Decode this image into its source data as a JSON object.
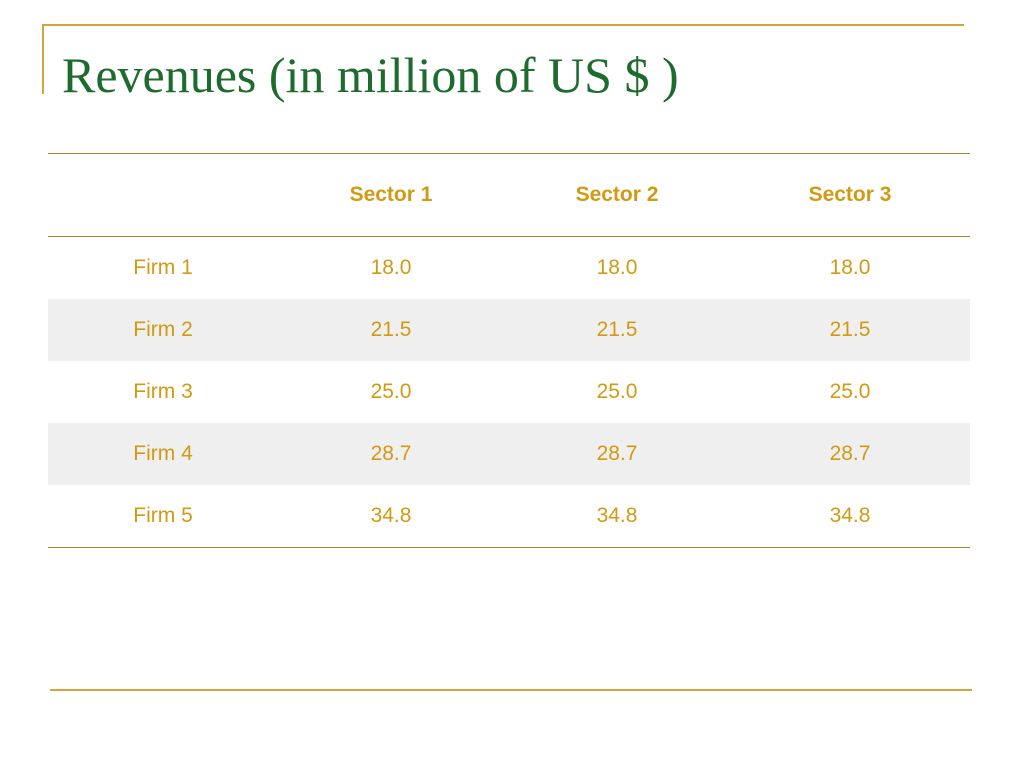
{
  "slide": {
    "title": "Revenues (in million of US $ )"
  },
  "table": {
    "columns": [
      "",
      "Sector 1",
      "Sector 2",
      "Sector 3"
    ],
    "rows": [
      {
        "label": "Firm 1",
        "values": [
          "18.0",
          "18.0",
          "18.0"
        ]
      },
      {
        "label": "Firm 2",
        "values": [
          "21.5",
          "21.5",
          "21.5"
        ]
      },
      {
        "label": "Firm 3",
        "values": [
          "25.0",
          "25.0",
          "25.0"
        ]
      },
      {
        "label": "Firm 4",
        "values": [
          "28.7",
          "28.7",
          "28.7"
        ]
      },
      {
        "label": "Firm 5",
        "values": [
          "34.8",
          "34.8",
          "34.8"
        ]
      }
    ]
  },
  "theme": {
    "title_color": "#1e6b2e",
    "text_color": "#d29a12",
    "rule_color": "#d4a53c",
    "alt_row_color": "#efefef"
  }
}
